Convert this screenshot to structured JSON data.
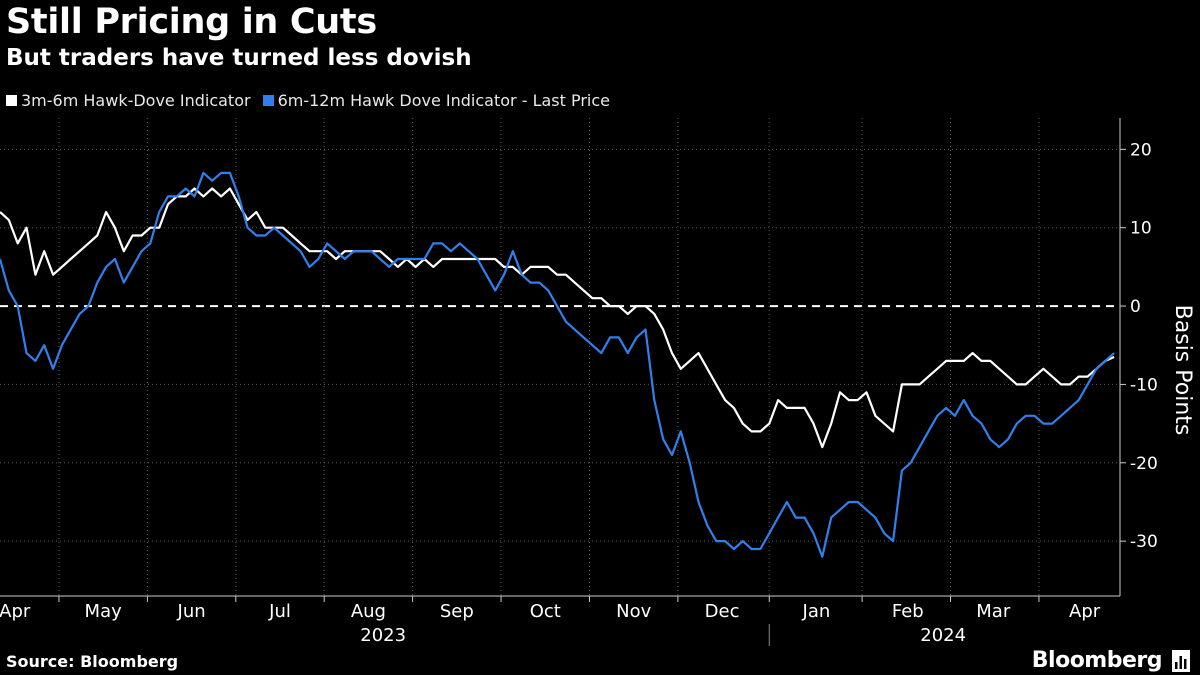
{
  "title": "Still Pricing in Cuts",
  "subtitle": "But traders have turned less dovish",
  "source": "Source: Bloomberg",
  "brand": "Bloomberg",
  "chart_data": {
    "type": "line",
    "ylabel": "Basis Points",
    "ylim": [
      -37,
      24
    ],
    "yticks": [
      20,
      10,
      0,
      -10,
      -20,
      -30
    ],
    "zero_line": "dashed",
    "grid": "dotted",
    "x_range_days": [
      0,
      380
    ],
    "month_ticks": [
      {
        "label": "Apr",
        "day": 5
      },
      {
        "label": "May",
        "day": 35
      },
      {
        "label": "Jun",
        "day": 65
      },
      {
        "label": "Jul",
        "day": 95
      },
      {
        "label": "Aug",
        "day": 125
      },
      {
        "label": "Sep",
        "day": 155
      },
      {
        "label": "Oct",
        "day": 185
      },
      {
        "label": "Nov",
        "day": 215
      },
      {
        "label": "Dec",
        "day": 245
      },
      {
        "label": "Jan",
        "day": 277
      },
      {
        "label": "Feb",
        "day": 308
      },
      {
        "label": "Mar",
        "day": 337
      },
      {
        "label": "Apr",
        "day": 368
      }
    ],
    "year_labels": [
      {
        "label": "2023",
        "day": 130
      },
      {
        "label": "2024",
        "day": 320
      }
    ],
    "series": [
      {
        "name": "3m-6m Hawk-Dove Indicator",
        "color": "#ffffff",
        "points": [
          [
            0,
            12
          ],
          [
            3,
            11
          ],
          [
            6,
            8
          ],
          [
            9,
            10
          ],
          [
            12,
            4
          ],
          [
            15,
            7
          ],
          [
            18,
            4
          ],
          [
            21,
            5
          ],
          [
            24,
            6
          ],
          [
            27,
            7
          ],
          [
            30,
            8
          ],
          [
            33,
            9
          ],
          [
            36,
            12
          ],
          [
            39,
            10
          ],
          [
            42,
            7
          ],
          [
            45,
            9
          ],
          [
            48,
            9
          ],
          [
            51,
            10
          ],
          [
            54,
            10
          ],
          [
            57,
            13
          ],
          [
            60,
            14
          ],
          [
            63,
            14
          ],
          [
            66,
            15
          ],
          [
            69,
            14
          ],
          [
            72,
            15
          ],
          [
            75,
            14
          ],
          [
            78,
            15
          ],
          [
            81,
            13
          ],
          [
            84,
            11
          ],
          [
            87,
            12
          ],
          [
            90,
            10
          ],
          [
            93,
            10
          ],
          [
            96,
            10
          ],
          [
            99,
            9
          ],
          [
            102,
            8
          ],
          [
            105,
            7
          ],
          [
            108,
            7
          ],
          [
            111,
            7
          ],
          [
            114,
            6
          ],
          [
            117,
            7
          ],
          [
            120,
            7
          ],
          [
            123,
            7
          ],
          [
            126,
            7
          ],
          [
            129,
            7
          ],
          [
            132,
            6
          ],
          [
            135,
            5
          ],
          [
            138,
            6
          ],
          [
            141,
            5
          ],
          [
            144,
            6
          ],
          [
            147,
            5
          ],
          [
            150,
            6
          ],
          [
            153,
            6
          ],
          [
            156,
            6
          ],
          [
            159,
            6
          ],
          [
            162,
            6
          ],
          [
            165,
            6
          ],
          [
            168,
            6
          ],
          [
            171,
            5
          ],
          [
            174,
            5
          ],
          [
            177,
            4
          ],
          [
            180,
            5
          ],
          [
            183,
            5
          ],
          [
            186,
            5
          ],
          [
            189,
            4
          ],
          [
            192,
            4
          ],
          [
            195,
            3
          ],
          [
            198,
            2
          ],
          [
            201,
            1
          ],
          [
            204,
            1
          ],
          [
            207,
            0
          ],
          [
            210,
            0
          ],
          [
            213,
            -1
          ],
          [
            216,
            0
          ],
          [
            219,
            0
          ],
          [
            222,
            -1
          ],
          [
            225,
            -3
          ],
          [
            228,
            -6
          ],
          [
            231,
            -8
          ],
          [
            234,
            -7
          ],
          [
            237,
            -6
          ],
          [
            240,
            -8
          ],
          [
            243,
            -10
          ],
          [
            246,
            -12
          ],
          [
            249,
            -13
          ],
          [
            252,
            -15
          ],
          [
            255,
            -16
          ],
          [
            258,
            -16
          ],
          [
            261,
            -15
          ],
          [
            264,
            -12
          ],
          [
            267,
            -13
          ],
          [
            270,
            -13
          ],
          [
            273,
            -13
          ],
          [
            276,
            -15
          ],
          [
            279,
            -18
          ],
          [
            282,
            -15
          ],
          [
            285,
            -11
          ],
          [
            288,
            -12
          ],
          [
            291,
            -12
          ],
          [
            294,
            -11
          ],
          [
            297,
            -14
          ],
          [
            300,
            -15
          ],
          [
            303,
            -16
          ],
          [
            306,
            -10
          ],
          [
            309,
            -10
          ],
          [
            312,
            -10
          ],
          [
            315,
            -9
          ],
          [
            318,
            -8
          ],
          [
            321,
            -7
          ],
          [
            324,
            -7
          ],
          [
            327,
            -7
          ],
          [
            330,
            -6
          ],
          [
            333,
            -7
          ],
          [
            336,
            -7
          ],
          [
            339,
            -8
          ],
          [
            342,
            -9
          ],
          [
            345,
            -10
          ],
          [
            348,
            -10
          ],
          [
            351,
            -9
          ],
          [
            354,
            -8
          ],
          [
            357,
            -9
          ],
          [
            360,
            -10
          ],
          [
            363,
            -10
          ],
          [
            366,
            -9
          ],
          [
            369,
            -9
          ],
          [
            372,
            -8
          ],
          [
            375,
            -7
          ],
          [
            378,
            -6.5
          ]
        ]
      },
      {
        "name": "6m-12m Hawk Dove Indicator - Last Price",
        "color": "#2f80ed",
        "points": [
          [
            0,
            6
          ],
          [
            3,
            2
          ],
          [
            6,
            0
          ],
          [
            9,
            -6
          ],
          [
            12,
            -7
          ],
          [
            15,
            -5
          ],
          [
            18,
            -8
          ],
          [
            21,
            -5
          ],
          [
            24,
            -3
          ],
          [
            27,
            -1
          ],
          [
            30,
            0
          ],
          [
            33,
            3
          ],
          [
            36,
            5
          ],
          [
            39,
            6
          ],
          [
            42,
            3
          ],
          [
            45,
            5
          ],
          [
            48,
            7
          ],
          [
            51,
            8
          ],
          [
            54,
            12
          ],
          [
            57,
            14
          ],
          [
            60,
            14
          ],
          [
            63,
            15
          ],
          [
            66,
            14
          ],
          [
            69,
            17
          ],
          [
            72,
            16
          ],
          [
            75,
            17
          ],
          [
            78,
            17
          ],
          [
            81,
            14
          ],
          [
            84,
            10
          ],
          [
            87,
            9
          ],
          [
            90,
            9
          ],
          [
            93,
            10
          ],
          [
            96,
            9
          ],
          [
            99,
            8
          ],
          [
            102,
            7
          ],
          [
            105,
            5
          ],
          [
            108,
            6
          ],
          [
            111,
            8
          ],
          [
            114,
            7
          ],
          [
            117,
            6
          ],
          [
            120,
            7
          ],
          [
            123,
            7
          ],
          [
            126,
            7
          ],
          [
            129,
            6
          ],
          [
            132,
            5
          ],
          [
            135,
            6
          ],
          [
            138,
            6
          ],
          [
            141,
            6
          ],
          [
            144,
            6
          ],
          [
            147,
            8
          ],
          [
            150,
            8
          ],
          [
            153,
            7
          ],
          [
            156,
            8
          ],
          [
            159,
            7
          ],
          [
            162,
            6
          ],
          [
            165,
            4
          ],
          [
            168,
            2
          ],
          [
            171,
            4
          ],
          [
            174,
            7
          ],
          [
            177,
            4
          ],
          [
            180,
            3
          ],
          [
            183,
            3
          ],
          [
            186,
            2
          ],
          [
            189,
            0
          ],
          [
            192,
            -2
          ],
          [
            195,
            -3
          ],
          [
            198,
            -4
          ],
          [
            201,
            -5
          ],
          [
            204,
            -6
          ],
          [
            207,
            -4
          ],
          [
            210,
            -4
          ],
          [
            213,
            -6
          ],
          [
            216,
            -4
          ],
          [
            219,
            -3
          ],
          [
            222,
            -12
          ],
          [
            225,
            -17
          ],
          [
            228,
            -19
          ],
          [
            231,
            -16
          ],
          [
            234,
            -20
          ],
          [
            237,
            -25
          ],
          [
            240,
            -28
          ],
          [
            243,
            -30
          ],
          [
            246,
            -30
          ],
          [
            249,
            -31
          ],
          [
            252,
            -30
          ],
          [
            255,
            -31
          ],
          [
            258,
            -31
          ],
          [
            261,
            -29
          ],
          [
            264,
            -27
          ],
          [
            267,
            -25
          ],
          [
            270,
            -27
          ],
          [
            273,
            -27
          ],
          [
            276,
            -29
          ],
          [
            279,
            -32
          ],
          [
            282,
            -27
          ],
          [
            285,
            -26
          ],
          [
            288,
            -25
          ],
          [
            291,
            -25
          ],
          [
            294,
            -26
          ],
          [
            297,
            -27
          ],
          [
            300,
            -29
          ],
          [
            303,
            -30
          ],
          [
            306,
            -21
          ],
          [
            309,
            -20
          ],
          [
            312,
            -18
          ],
          [
            315,
            -16
          ],
          [
            318,
            -14
          ],
          [
            321,
            -13
          ],
          [
            324,
            -14
          ],
          [
            327,
            -12
          ],
          [
            330,
            -14
          ],
          [
            333,
            -15
          ],
          [
            336,
            -17
          ],
          [
            339,
            -18
          ],
          [
            342,
            -17
          ],
          [
            345,
            -15
          ],
          [
            348,
            -14
          ],
          [
            351,
            -14
          ],
          [
            354,
            -15
          ],
          [
            357,
            -15
          ],
          [
            360,
            -14
          ],
          [
            363,
            -13
          ],
          [
            366,
            -12
          ],
          [
            369,
            -10
          ],
          [
            372,
            -8
          ],
          [
            375,
            -7
          ],
          [
            378,
            -6
          ]
        ]
      }
    ]
  }
}
